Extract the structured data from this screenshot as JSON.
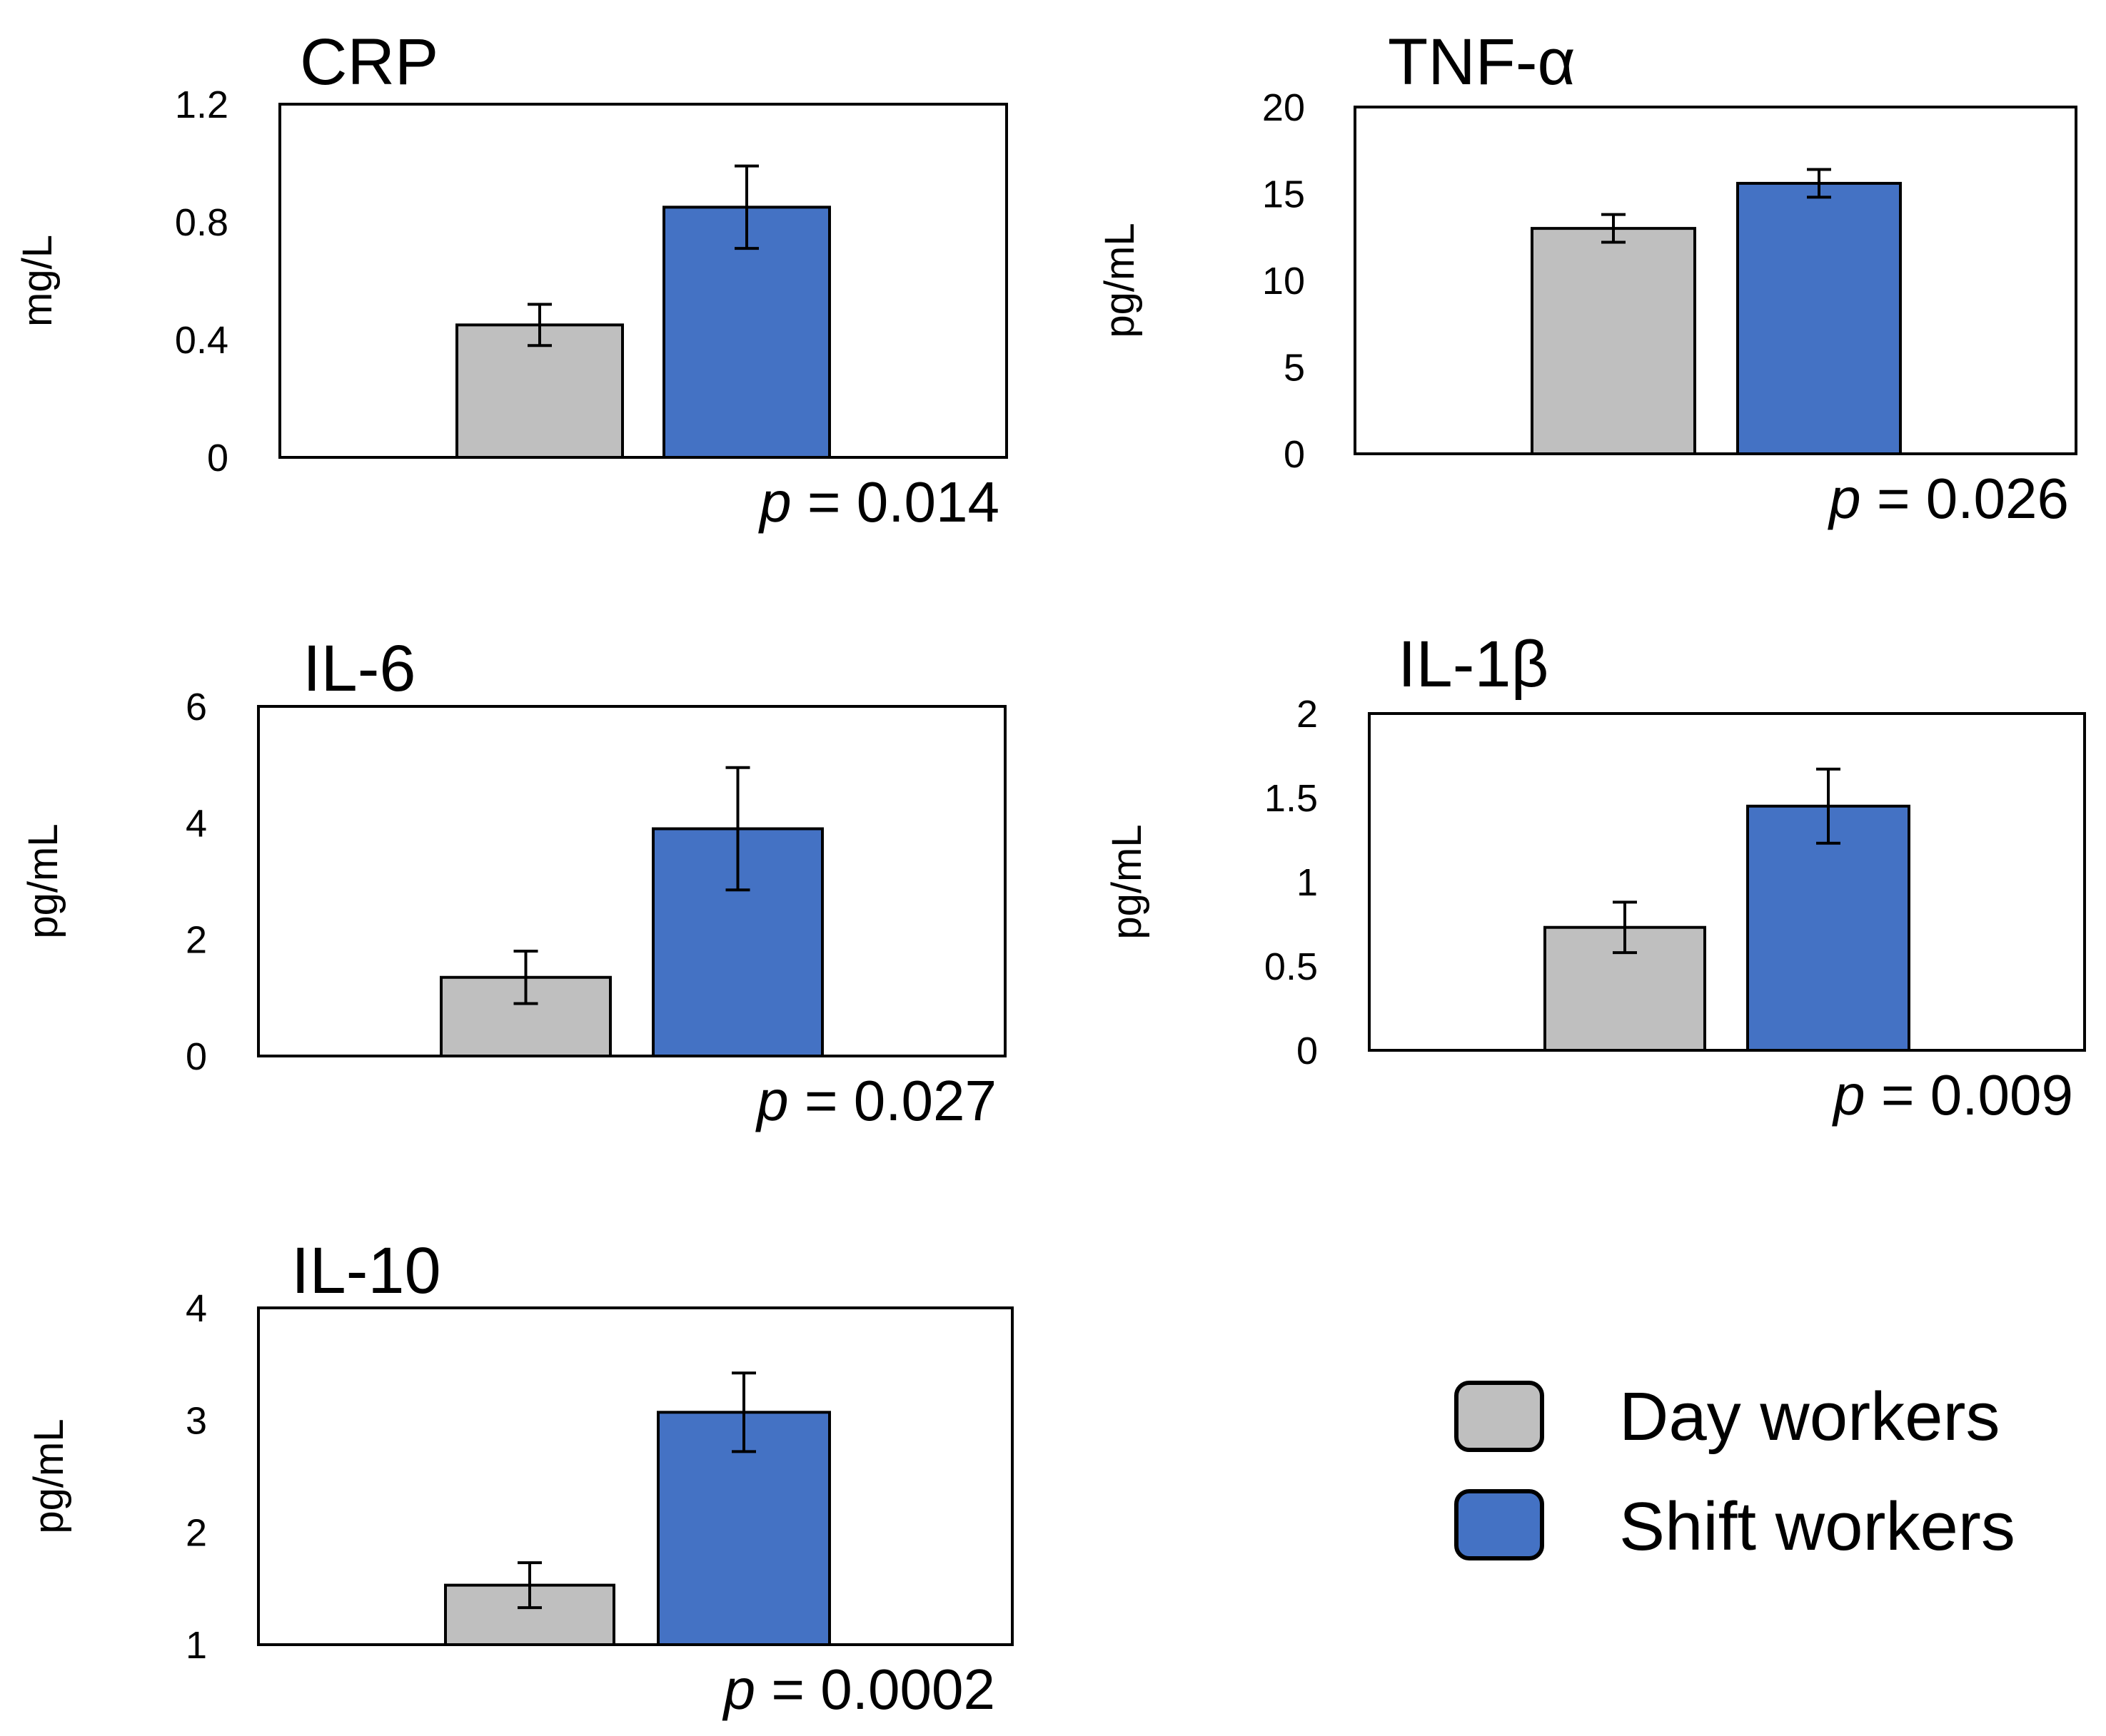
{
  "colors": {
    "day": "#bfbfbf",
    "shift": "#4472c4",
    "stroke": "#000000"
  },
  "legend": {
    "items": [
      {
        "label": "Day workers",
        "color": "#bfbfbf"
      },
      {
        "label": "Shift workers",
        "color": "#4472c4"
      }
    ]
  },
  "chart_data": [
    {
      "type": "bar",
      "title": "CRP",
      "ylabel": "mg/L",
      "categories": [
        "Day workers",
        "Shift workers"
      ],
      "values": [
        0.45,
        0.85
      ],
      "errors": [
        0.07,
        0.14
      ],
      "ylim": [
        0,
        1.2
      ],
      "ticks": [
        0,
        0.4,
        0.8,
        1.2
      ],
      "tick_labels": [
        "0",
        "0.4",
        "0.8",
        "1.2"
      ],
      "p_label": "p",
      "p_value": "= 0.014"
    },
    {
      "type": "bar",
      "title": "TNF-α",
      "ylabel": "pg/mL",
      "categories": [
        "Day workers",
        "Shift workers"
      ],
      "values": [
        13.0,
        15.6
      ],
      "errors": [
        0.8,
        0.8
      ],
      "ylim": [
        0,
        20
      ],
      "ticks": [
        0,
        5,
        10,
        15,
        20
      ],
      "tick_labels": [
        "0",
        "5",
        "10",
        "15",
        "20"
      ],
      "p_label": "p",
      "p_value": "= 0.026"
    },
    {
      "type": "bar",
      "title": "IL-6",
      "ylabel": "pg/mL",
      "categories": [
        "Day workers",
        "Shift workers"
      ],
      "values": [
        1.35,
        3.9
      ],
      "errors": [
        0.45,
        1.05
      ],
      "ylim": [
        0,
        6
      ],
      "ticks": [
        0,
        2,
        4,
        6
      ],
      "tick_labels": [
        "0",
        "2",
        "4",
        "6"
      ],
      "p_label": "p",
      "p_value": "= 0.027"
    },
    {
      "type": "bar",
      "title": "IL-1β",
      "ylabel": "pg/mL",
      "categories": [
        "Day workers",
        "Shift workers"
      ],
      "values": [
        0.73,
        1.45
      ],
      "errors": [
        0.15,
        0.22
      ],
      "ylim": [
        0,
        2
      ],
      "ticks": [
        0,
        0.5,
        1,
        1.5,
        2
      ],
      "tick_labels": [
        "0",
        "0.5",
        "1",
        "1.5",
        "2"
      ],
      "p_label": "p",
      "p_value": "= 0.009"
    },
    {
      "type": "bar",
      "title": "IL-10",
      "ylabel": "pg/mL",
      "categories": [
        "Day workers",
        "Shift workers"
      ],
      "values": [
        1.53,
        3.07
      ],
      "errors": [
        0.2,
        0.35
      ],
      "ylim": [
        1,
        4
      ],
      "ticks": [
        1,
        2,
        3,
        4
      ],
      "tick_labels": [
        "1",
        "2",
        "3",
        "4"
      ],
      "p_label": "p",
      "p_value": "= 0.0002"
    }
  ]
}
